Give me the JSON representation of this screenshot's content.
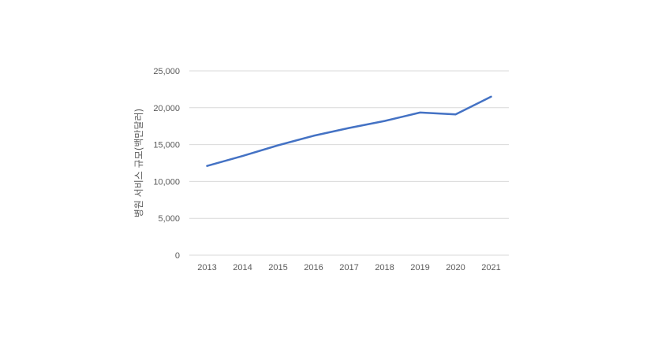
{
  "chart_data": {
    "type": "line",
    "title": "",
    "xlabel": "",
    "ylabel": "병원 서비스 규모(백만달러)",
    "categories": [
      "2013",
      "2014",
      "2015",
      "2016",
      "2017",
      "2018",
      "2019",
      "2020",
      "2021"
    ],
    "series": [
      {
        "values": [
          12100,
          13450,
          14900,
          16200,
          17250,
          18200,
          19350,
          19100,
          21500
        ],
        "color": "#4472C4"
      }
    ],
    "ylim": [
      0,
      25000
    ],
    "yticks": [
      0,
      5000,
      10000,
      15000,
      20000,
      25000
    ],
    "ytick_labels": [
      "0",
      "5,000",
      "10,000",
      "15,000",
      "20,000",
      "25,000"
    ],
    "grid": true,
    "gridline_color": "#D9D9D9",
    "legend": "none"
  }
}
